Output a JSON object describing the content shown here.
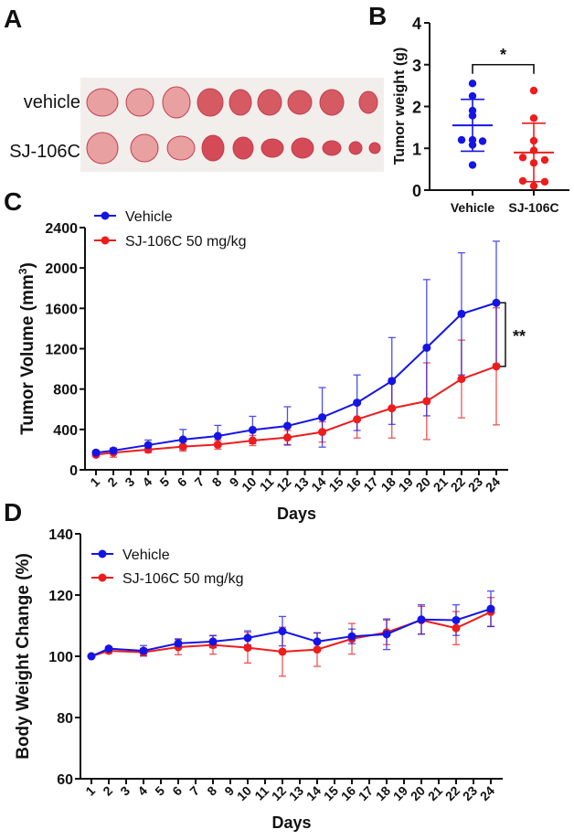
{
  "panels": {
    "A": {
      "label": "A",
      "row_labels": [
        "vehicle",
        "SJ-106C"
      ]
    },
    "B": {
      "label": "B"
    },
    "C": {
      "label": "C"
    },
    "D": {
      "label": "D"
    }
  },
  "colors": {
    "vehicle": "#1414e6",
    "treatment": "#ee1c1c",
    "axis": "#111111"
  },
  "chart_data": [
    {
      "panel": "B",
      "type": "scatter",
      "ylabel": "Tumor weight (g)",
      "ylim": [
        0,
        4
      ],
      "yticks": [
        "0",
        "1",
        "2",
        "3",
        "4"
      ],
      "categories": [
        "Vehicle",
        "SJ-106C"
      ],
      "series": [
        {
          "category": "Vehicle",
          "points": [
            2.55,
            2.25,
            1.9,
            1.78,
            1.2,
            1.2,
            1.17,
            1.08,
            0.6
          ],
          "mean": 1.55,
          "sd": 0.62
        },
        {
          "category": "SJ-106C",
          "points": [
            2.38,
            1.72,
            1.18,
            0.95,
            0.78,
            0.72,
            0.65,
            0.22,
            0.2,
            0.1
          ],
          "mean": 0.9,
          "sd": 0.7
        }
      ],
      "significance": {
        "label": "*",
        "y": 3
      },
      "grid": false
    },
    {
      "panel": "C",
      "type": "line",
      "xlabel": "Days",
      "ylabel": "Tumor Volume (mm³)",
      "ylabel_main": "Tumor Volume (mm",
      "ylabel_sup": "3",
      "ylabel_end": ")",
      "ylim": [
        0,
        2400
      ],
      "yticks": [
        "0",
        "400",
        "800",
        "1200",
        "1600",
        "2000",
        "2400"
      ],
      "xticks": [
        "1",
        "2",
        "3",
        "4",
        "5",
        "6",
        "7",
        "8",
        "9",
        "10",
        "11",
        "12",
        "13",
        "14",
        "15",
        "16",
        "17",
        "18",
        "19",
        "20",
        "21",
        "22",
        "23",
        "24"
      ],
      "x": [
        1,
        2,
        4,
        6,
        8,
        10,
        12,
        14,
        16,
        18,
        20,
        22,
        24
      ],
      "series": [
        {
          "name": "Vehicle",
          "color_key": "vehicle",
          "values": [
            170,
            190,
            245,
            300,
            335,
            395,
            435,
            520,
            665,
            880,
            1210,
            1545,
            1655
          ],
          "error": [
            20,
            25,
            50,
            100,
            105,
            135,
            190,
            295,
            275,
            430,
            675,
            605,
            610
          ]
        },
        {
          "name": "SJ-106C 50 mg/kg",
          "color_key": "treatment",
          "values": [
            150,
            170,
            200,
            230,
            250,
            290,
            320,
            375,
            500,
            610,
            680,
            900,
            1025
          ],
          "error": [
            15,
            45,
            30,
            45,
            45,
            50,
            70,
            100,
            185,
            295,
            380,
            385,
            580
          ]
        }
      ],
      "significance": {
        "label": "**"
      },
      "legend": "top-left",
      "grid": false
    },
    {
      "panel": "D",
      "type": "line",
      "xlabel": "Days",
      "ylabel": "Body Weight Change (%)",
      "ylim": [
        60,
        140
      ],
      "yticks": [
        "60",
        "80",
        "100",
        "120",
        "140"
      ],
      "xticks": [
        "1",
        "2",
        "3",
        "4",
        "5",
        "6",
        "7",
        "8",
        "9",
        "10",
        "11",
        "12",
        "13",
        "14",
        "15",
        "16",
        "17",
        "18",
        "19",
        "20",
        "21",
        "22",
        "23",
        "24"
      ],
      "x": [
        1,
        2,
        4,
        6,
        8,
        10,
        12,
        14,
        16,
        18,
        20,
        22,
        24
      ],
      "series": [
        {
          "name": "Vehicle",
          "color_key": "vehicle",
          "values": [
            100,
            102.5,
            101.8,
            104.2,
            104.8,
            106,
            108.2,
            104.8,
            106.5,
            107.2,
            112,
            111.8,
            115.5
          ],
          "error": [
            0,
            0.5,
            1.7,
            1.5,
            2,
            2.3,
            4.8,
            2.8,
            2.4,
            5,
            4.8,
            5,
            5.8
          ]
        },
        {
          "name": "SJ-106C 50 mg/kg",
          "color_key": "treatment",
          "values": [
            100,
            101.8,
            101.3,
            103,
            103.7,
            102.8,
            101.5,
            102.2,
            105.7,
            107.8,
            111.8,
            109.2,
            114.5
          ],
          "error": [
            0,
            0.8,
            1.2,
            2.5,
            3,
            5,
            8,
            5.5,
            5,
            4,
            4.5,
            5.4,
            4.7
          ]
        }
      ],
      "legend": "top-left",
      "grid": false
    }
  ]
}
